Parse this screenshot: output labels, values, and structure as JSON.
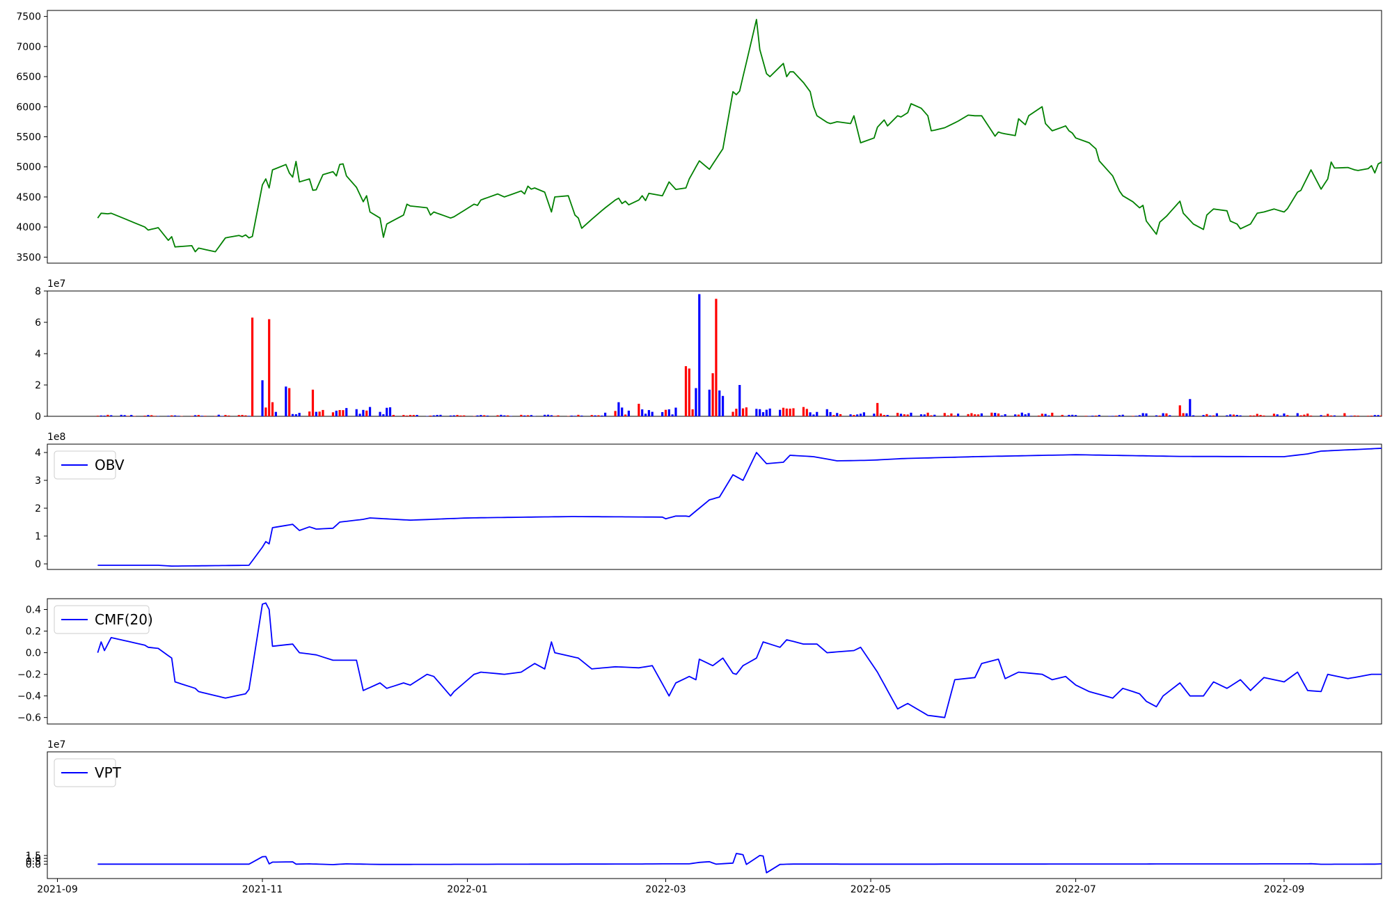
{
  "colors": {
    "price": "#008000",
    "vol_up": "#ff0000",
    "vol_down": "#0000ff",
    "indicator": "#0000ff"
  },
  "x_axis": {
    "range": [
      "2021-08-29",
      "2022-09-30"
    ],
    "ticks": [
      "2021-09-01",
      "2021-11-01",
      "2022-01-01",
      "2022-03-01",
      "2022-05-01",
      "2022-07-01",
      "2022-09-01"
    ],
    "tick_labels": [
      "2021-09",
      "2021-11",
      "2022-01",
      "2022-03",
      "2022-05",
      "2022-07",
      "2022-09"
    ]
  },
  "chart_data": [
    {
      "type": "line",
      "series": [
        {
          "values_anchor": [
            [
              "2021-09-13",
              4150
            ],
            [
              "2021-09-14",
              4230
            ],
            [
              "2021-09-16",
              4220
            ],
            [
              "2021-09-17",
              4230
            ],
            [
              "2021-09-27",
              4000
            ],
            [
              "2021-09-28",
              3950
            ],
            [
              "2021-10-01",
              3990
            ],
            [
              "2021-10-04",
              3780
            ],
            [
              "2021-10-05",
              3840
            ],
            [
              "2021-10-06",
              3670
            ],
            [
              "2021-10-11",
              3690
            ],
            [
              "2021-10-12",
              3590
            ],
            [
              "2021-10-13",
              3650
            ],
            [
              "2021-10-18",
              3590
            ],
            [
              "2021-10-21",
              3820
            ],
            [
              "2021-10-25",
              3860
            ],
            [
              "2021-10-26",
              3840
            ],
            [
              "2021-10-27",
              3870
            ],
            [
              "2021-10-28",
              3820
            ],
            [
              "2021-10-31",
              3890
            ],
            [
              "2021-11-01",
              4700
            ],
            [
              "2021-11-02",
              4800
            ],
            [
              "2021-11-03",
              4650
            ],
            [
              "2021-11-04",
              4950
            ],
            [
              "2021-11-08",
              5040
            ],
            [
              "2021-11-09",
              4900
            ],
            [
              "2021-11-10",
              4830
            ],
            [
              "2021-11-11",
              5090
            ],
            [
              "2021-11-12",
              4750
            ],
            [
              "2021-11-15",
              4800
            ],
            [
              "2021-11-16",
              4610
            ],
            [
              "2021-11-17",
              4620
            ],
            [
              "2021-11-19",
              4870
            ],
            [
              "2021-11-22",
              4920
            ],
            [
              "2021-11-23",
              4850
            ],
            [
              "2021-11-24",
              5040
            ],
            [
              "2021-11-25",
              5050
            ],
            [
              "2021-11-26",
              4850
            ],
            [
              "2021-11-29",
              4660
            ],
            [
              "2021-12-01",
              4420
            ],
            [
              "2021-12-02",
              4520
            ],
            [
              "2021-12-03",
              4250
            ],
            [
              "2021-12-06",
              4150
            ],
            [
              "2021-12-07",
              3830
            ],
            [
              "2021-12-08",
              4050
            ],
            [
              "2021-12-13",
              4200
            ],
            [
              "2021-12-14",
              4380
            ],
            [
              "2021-12-15",
              4350
            ],
            [
              "2021-12-20",
              4320
            ],
            [
              "2021-12-21",
              4200
            ],
            [
              "2021-12-22",
              4250
            ],
            [
              "2021-12-27",
              4150
            ],
            [
              "2021-12-28",
              4170
            ],
            [
              "2022-01-03",
              4380
            ],
            [
              "2022-01-04",
              4360
            ],
            [
              "2022-01-05",
              4450
            ],
            [
              "2022-01-10",
              4550
            ],
            [
              "2022-01-12",
              4500
            ],
            [
              "2022-01-17",
              4600
            ],
            [
              "2022-01-18",
              4550
            ],
            [
              "2022-01-19",
              4680
            ],
            [
              "2022-01-20",
              4630
            ],
            [
              "2022-01-21",
              4650
            ],
            [
              "2022-01-24",
              4580
            ],
            [
              "2022-01-26",
              4250
            ],
            [
              "2022-01-27",
              4500
            ],
            [
              "2022-01-31",
              4520
            ],
            [
              "2022-02-02",
              4200
            ],
            [
              "2022-02-03",
              4150
            ],
            [
              "2022-02-04",
              3980
            ],
            [
              "2022-02-07",
              4130
            ],
            [
              "2022-02-11",
              4320
            ],
            [
              "2022-02-14",
              4450
            ],
            [
              "2022-02-15",
              4480
            ],
            [
              "2022-02-16",
              4390
            ],
            [
              "2022-02-17",
              4430
            ],
            [
              "2022-02-20",
              4250
            ],
            [
              "2022-02-21",
              4450
            ],
            [
              "2022-02-22",
              4520
            ],
            [
              "2022-02-23",
              4440
            ],
            [
              "2022-02-24",
              4560
            ],
            [
              "2022-02-28",
              4520
            ],
            [
              "2022-03-02",
              4750
            ],
            [
              "2022-03-06",
              4500
            ],
            [
              "2022-03-08",
              4800
            ],
            [
              "2022-03-11",
              5100
            ],
            [
              "2022-03-14",
              4960
            ],
            [
              "2022-03-18",
              5300
            ],
            [
              "2022-03-19",
              6450
            ],
            [
              "2022-03-21",
              6250
            ],
            [
              "2022-03-22",
              6200
            ],
            [
              "2022-03-23",
              6260
            ],
            [
              "2022-03-28",
              7450
            ],
            [
              "2022-03-29",
              6950
            ],
            [
              "2022-03-31",
              6550
            ],
            [
              "2022-04-01",
              6500
            ],
            [
              "2022-04-05",
              6720
            ],
            [
              "2022-04-06",
              6500
            ],
            [
              "2022-04-07",
              6580
            ],
            [
              "2022-04-08",
              6580
            ],
            [
              "2022-04-11",
              6400
            ],
            [
              "2022-04-13",
              6250
            ],
            [
              "2022-04-14",
              6000
            ],
            [
              "2022-04-15",
              5850
            ],
            [
              "2022-04-18",
              5740
            ],
            [
              "2022-04-19",
              5720
            ],
            [
              "2022-04-21",
              5750
            ],
            [
              "2022-04-25",
              5720
            ],
            [
              "2022-04-26",
              5850
            ],
            [
              "2022-04-28",
              5400
            ],
            [
              "2022-05-02",
              5480
            ],
            [
              "2022-05-03",
              5660
            ],
            [
              "2022-05-05",
              5780
            ],
            [
              "2022-05-06",
              5680
            ],
            [
              "2022-05-09",
              5850
            ],
            [
              "2022-05-10",
              5830
            ],
            [
              "2022-05-12",
              5900
            ],
            [
              "2022-05-13",
              6050
            ],
            [
              "2022-05-14",
              6100
            ],
            [
              "2022-05-18",
              5850
            ],
            [
              "2022-05-19",
              5600
            ],
            [
              "2022-05-21",
              5620
            ],
            [
              "2022-05-23",
              5650
            ],
            [
              "2022-05-27",
              5760
            ],
            [
              "2022-05-28",
              5780
            ],
            [
              "2022-05-30",
              5860
            ],
            [
              "2022-06-01",
              5850
            ],
            [
              "2022-06-03",
              5850
            ],
            [
              "2022-06-07",
              5510
            ],
            [
              "2022-06-08",
              5580
            ],
            [
              "2022-06-09",
              5560
            ],
            [
              "2022-06-13",
              5520
            ],
            [
              "2022-06-14",
              5800
            ],
            [
              "2022-06-16",
              5700
            ],
            [
              "2022-06-17",
              5850
            ],
            [
              "2022-06-21",
              6000
            ],
            [
              "2022-06-22",
              5720
            ],
            [
              "2022-06-24",
              5600
            ],
            [
              "2022-06-28",
              5680
            ],
            [
              "2022-06-29",
              5600
            ],
            [
              "2022-06-30",
              5560
            ],
            [
              "2022-07-01",
              5480
            ],
            [
              "2022-07-05",
              5400
            ],
            [
              "2022-07-07",
              5300
            ],
            [
              "2022-07-08",
              5100
            ],
            [
              "2022-07-12",
              4850
            ],
            [
              "2022-07-14",
              4600
            ],
            [
              "2022-07-15",
              4520
            ],
            [
              "2022-07-18",
              4420
            ],
            [
              "2022-07-20",
              4320
            ],
            [
              "2022-07-21",
              4360
            ],
            [
              "2022-07-22",
              4100
            ],
            [
              "2022-07-25",
              3880
            ],
            [
              "2022-07-26",
              4080
            ],
            [
              "2022-07-28",
              4180
            ],
            [
              "2022-08-01",
              4430
            ],
            [
              "2022-08-02",
              4230
            ],
            [
              "2022-08-05",
              4050
            ],
            [
              "2022-08-08",
              3960
            ],
            [
              "2022-08-09",
              4200
            ],
            [
              "2022-08-11",
              4300
            ],
            [
              "2022-08-15",
              4270
            ],
            [
              "2022-08-16",
              4100
            ],
            [
              "2022-08-18",
              4050
            ],
            [
              "2022-08-19",
              3970
            ],
            [
              "2022-08-22",
              4050
            ],
            [
              "2022-08-24",
              4230
            ],
            [
              "2022-08-26",
              4250
            ],
            [
              "2022-08-29",
              4300
            ],
            [
              "2022-09-01",
              4250
            ],
            [
              "2022-09-03",
              4360
            ],
            [
              "2022-09-05",
              4580
            ],
            [
              "2022-09-06",
              4610
            ],
            [
              "2022-09-09",
              4950
            ],
            [
              "2022-09-10",
              4600
            ],
            [
              "2022-09-12",
              4630
            ],
            [
              "2022-09-14",
              4800
            ],
            [
              "2022-09-15",
              5080
            ],
            [
              "2022-09-16",
              4980
            ],
            [
              "2022-09-20",
              4990
            ],
            [
              "2022-09-22",
              4950
            ],
            [
              "2022-09-25",
              4920
            ],
            [
              "2022-09-27",
              5020
            ],
            [
              "2022-09-28",
              4900
            ],
            [
              "2022-09-29",
              5050
            ],
            [
              "2022-09-30",
              5080
            ]
          ]
        }
      ],
      "ylim": [
        3400,
        7600
      ],
      "yticks": [
        3500,
        4000,
        4500,
        5000,
        5500,
        6000,
        6500,
        7000,
        7500
      ]
    },
    {
      "type": "bar",
      "exponent_label": "1e7",
      "ylim": [
        0,
        8
      ],
      "yticks": [
        0,
        2,
        4,
        6,
        8
      ]
    },
    {
      "type": "line",
      "exponent_label": "1e8",
      "series": [
        {
          "name": "OBV"
        }
      ],
      "ylim": [
        -0.2,
        4.3
      ],
      "yticks": [
        0,
        1,
        2,
        3,
        4
      ]
    },
    {
      "type": "line",
      "series": [
        {
          "name": "CMF(20)"
        }
      ],
      "ylim": [
        -0.66,
        0.5
      ],
      "yticks": [
        -0.6,
        -0.4,
        -0.2,
        0.0,
        0.2,
        0.4
      ],
      "ytick_labels": [
        "−0.6",
        "−0.4",
        "−0.2",
        "0.0",
        "0.2",
        "0.4"
      ]
    },
    {
      "type": "line",
      "exponent_label": "1e7",
      "series": [
        {
          "name": "VPT"
        }
      ],
      "ylim": [
        -2.5,
        19.5
      ],
      "yticks": [
        0.0,
        0.5,
        1.0,
        1.5
      ],
      "ytick_labels": [
        "0.0",
        "0.5",
        "1.0",
        "1.5"
      ]
    }
  ]
}
